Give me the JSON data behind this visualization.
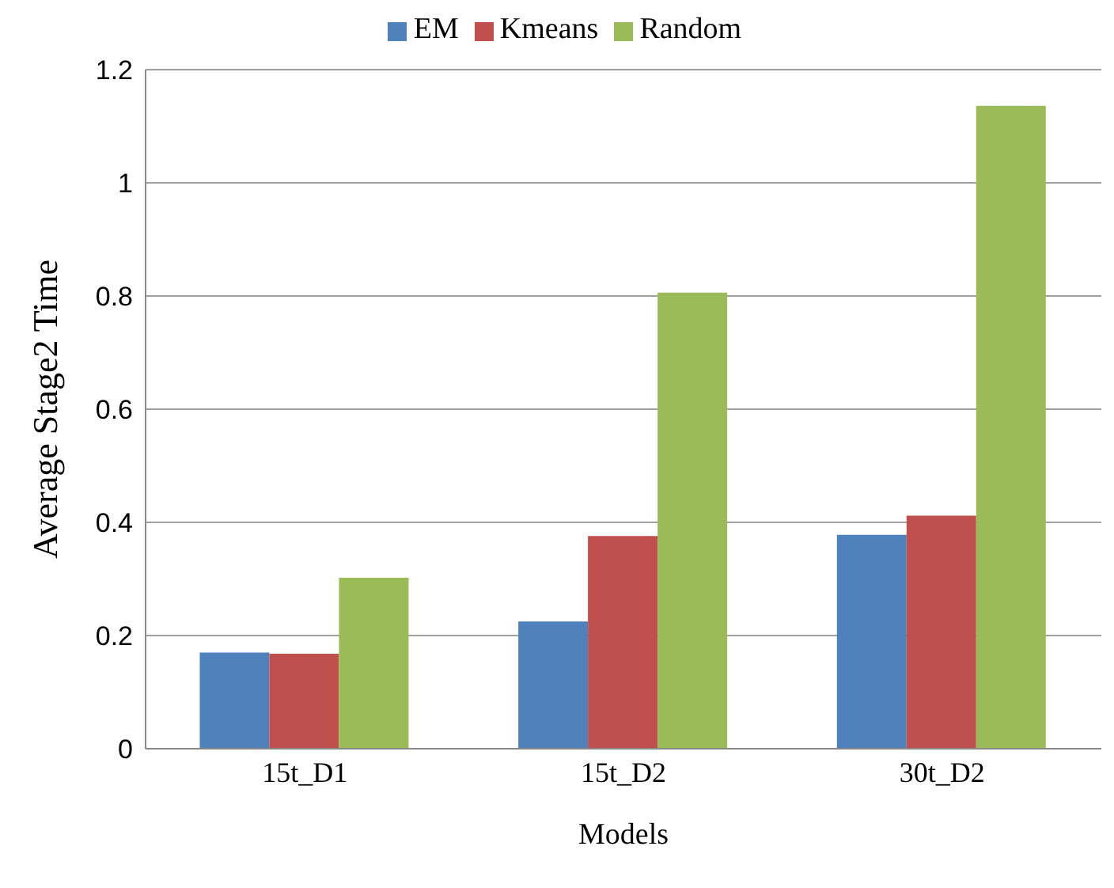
{
  "chart_data": {
    "type": "bar",
    "xlabel": "Models",
    "ylabel": "Average Stage2 Time",
    "categories": [
      "15t_D1",
      "15t_D2",
      "30t_D2"
    ],
    "series": [
      {
        "name": "EM",
        "color": "#4f81bd",
        "values": [
          0.17,
          0.225,
          0.378
        ]
      },
      {
        "name": "Kmeans",
        "color": "#c0504d",
        "values": [
          0.168,
          0.376,
          0.412
        ]
      },
      {
        "name": "Random",
        "color": "#9bbb59",
        "values": [
          0.302,
          0.806,
          1.136
        ]
      }
    ],
    "ylim": [
      0,
      1.2
    ],
    "yticks": [
      0,
      0.2,
      0.4,
      0.6,
      0.8,
      1,
      1.2
    ],
    "grid": "y",
    "legend": "top"
  }
}
